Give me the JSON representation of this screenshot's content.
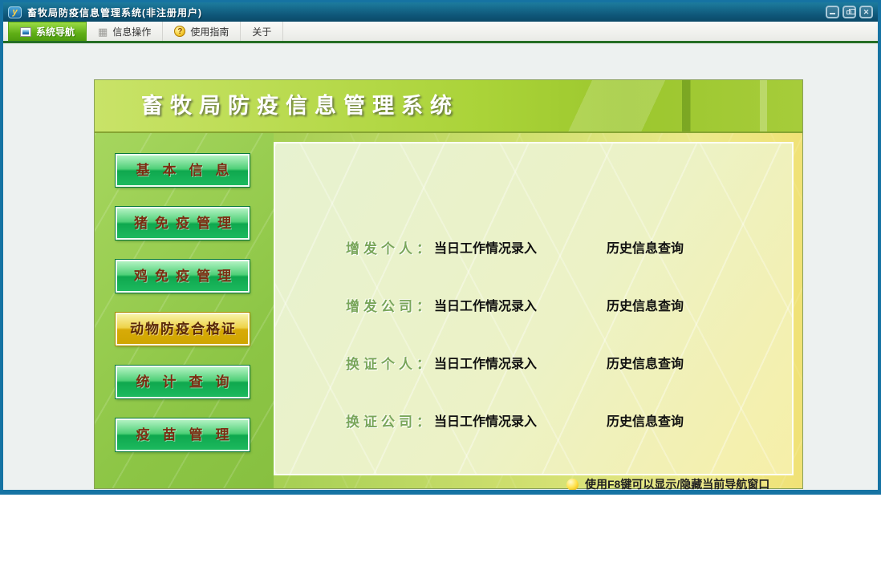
{
  "window": {
    "title": "畜牧局防疫信息管理系统(非注册用户)",
    "app_icon": "y"
  },
  "icons": {
    "grid": "▦",
    "help": "?",
    "close": "✕"
  },
  "tabbar": {
    "tabs": [
      {
        "label": "系统导航",
        "icon": "window-icon",
        "active": true
      },
      {
        "label": "信息操作",
        "icon": "grid-icon",
        "active": false
      },
      {
        "label": "使用指南",
        "icon": "help-icon",
        "active": false
      },
      {
        "label": "关于",
        "icon": "",
        "active": false
      }
    ]
  },
  "banner": {
    "title": "畜牧局防疫信息管理系统"
  },
  "sidebar": {
    "buttons": [
      {
        "label": "基本信息",
        "active": false
      },
      {
        "label": "猪免疫管理",
        "active": false
      },
      {
        "label": "鸡免疫管理",
        "active": false
      },
      {
        "label": "动物防疫合格证",
        "active": true
      },
      {
        "label": "统计查询",
        "active": false
      },
      {
        "label": "疫苗管理",
        "active": false
      }
    ]
  },
  "main": {
    "rows": [
      {
        "label": "增发个人：",
        "entry_link": "当日工作情况录入",
        "history_link": "历史信息查询"
      },
      {
        "label": "增发公司：",
        "entry_link": "当日工作情况录入",
        "history_link": "历史信息查询"
      },
      {
        "label": "换证个人：",
        "entry_link": "当日工作情况录入",
        "history_link": "历史信息查询"
      },
      {
        "label": "换证公司：",
        "entry_link": "当日工作情况录入",
        "history_link": "历史信息查询"
      }
    ]
  },
  "statusbar": {
    "hint": "使用F8键可以显示/隐藏当前导航窗口"
  },
  "colors": {
    "titlebar": "#0e5577",
    "window_border": "#1673a3",
    "accent_green": "#5fae16",
    "button_green": "#12a850",
    "active_button_gold": "#d8ab08"
  }
}
